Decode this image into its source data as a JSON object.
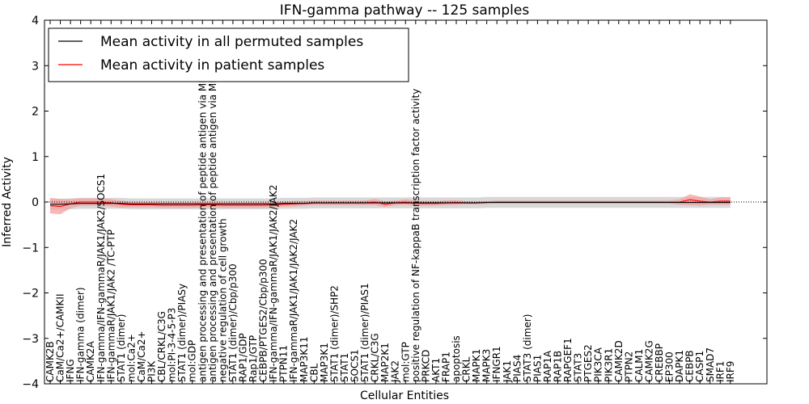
{
  "chart_data": {
    "type": "line",
    "title": "IFN-gamma pathway -- 125 samples",
    "xlabel": "Cellular Entities",
    "ylabel": "Inferred Activity",
    "ylim": [
      -4,
      4
    ],
    "yticks": [
      -4,
      -3,
      -2,
      -1,
      0,
      1,
      2,
      3,
      4
    ],
    "grid": false,
    "legend_position": "top-left",
    "categories": [
      "CAMK2B",
      "CaM/Ca2+/CAMKII",
      "IFNG",
      "IFN-gamma (dimer)",
      "CAMK2A",
      "IFN-gamma/IFN-gammaR/JAK1/JAK2/SOCS1",
      "IFN-gammaR/JAK1/JAK2 /TC-PTP",
      "STAT1 (dimer)",
      "mol:Ca2+",
      "CaM/Ca2+",
      "PI3K",
      "CBL/CRKL/C3G",
      "mol:PI-3-4-5-P3",
      "STAT1 (dimer)/PIASy",
      "mol:GDP",
      "antigen processing and presentation of peptide antigen via MHC class I",
      "antigen processing and presentation of peptide antigen via MHC class II",
      "negative regulation of cell growth",
      "STAT1 (dimer)/Cbp/p300",
      "RAP1/GDP",
      "Rap1/GTP",
      "CEBPB/PTGES2/Cbp/p300",
      "IFN-gamma/IFN-gammaR/JAK1/JAK2/JAK2",
      "PTPN11",
      "IFN-gammaR/JAK1/JAK1/JAK2/JAK2",
      "MAP3K11",
      "CBL",
      "MAP3K1",
      "STAT1 (dimer)/SHP2",
      "STAT1",
      "SOCS1",
      "STAT1 (dimer)/PIAS1",
      "CRKL/C3G",
      "MAP2K1",
      "JAK2",
      "mol:GTP",
      "positive regulation of NF-kappaB transcription factor activity",
      "PRKCD",
      "AKT1",
      "FRAP1",
      "apoptosis",
      "CRKL",
      "MAPK1",
      "MAPK3",
      "IFNGR1",
      "JAK1",
      "PIAS4",
      "STAT3 (dimer)",
      "PIAS1",
      "RAP1A",
      "RAP1B",
      "RAPGEF1",
      "STAT3",
      "PTGES2",
      "PIK3CA",
      "PIK3R1",
      "CAMK2D",
      "PTPN2",
      "CALM1",
      "CAMK2G",
      "CREBBP",
      "EP300",
      "DAPK1",
      "CEBPB",
      "CASP1",
      "SMAD7",
      "IRF1",
      "IRF9"
    ],
    "series": [
      {
        "name": "Mean activity in all permuted samples",
        "color": "#000000",
        "band_color": "#c8c8c8",
        "values": [
          -0.05,
          -0.05,
          -0.04,
          -0.03,
          -0.03,
          -0.03,
          -0.03,
          -0.03,
          -0.04,
          -0.04,
          -0.04,
          -0.04,
          -0.04,
          -0.04,
          -0.04,
          -0.04,
          -0.04,
          -0.04,
          -0.04,
          -0.04,
          -0.04,
          -0.04,
          -0.04,
          -0.03,
          -0.03,
          -0.03,
          -0.02,
          -0.02,
          -0.02,
          -0.02,
          -0.02,
          -0.02,
          -0.02,
          -0.02,
          -0.02,
          -0.02,
          -0.02,
          -0.02,
          -0.02,
          -0.02,
          -0.02,
          -0.02,
          -0.02,
          -0.01,
          -0.01,
          -0.01,
          -0.01,
          -0.01,
          -0.01,
          -0.01,
          -0.01,
          -0.01,
          -0.01,
          -0.01,
          -0.01,
          -0.01,
          -0.01,
          -0.01,
          -0.01,
          -0.01,
          -0.01,
          -0.01,
          -0.01,
          -0.01,
          -0.01,
          -0.01,
          -0.01,
          -0.01
        ],
        "spread": [
          0.12,
          0.12,
          0.12,
          0.12,
          0.12,
          0.12,
          0.12,
          0.12,
          0.12,
          0.12,
          0.12,
          0.12,
          0.12,
          0.12,
          0.12,
          0.12,
          0.12,
          0.12,
          0.12,
          0.12,
          0.12,
          0.12,
          0.12,
          0.12,
          0.12,
          0.12,
          0.12,
          0.12,
          0.12,
          0.12,
          0.12,
          0.12,
          0.12,
          0.12,
          0.12,
          0.12,
          0.12,
          0.12,
          0.12,
          0.12,
          0.12,
          0.12,
          0.12,
          0.12,
          0.12,
          0.12,
          0.12,
          0.12,
          0.12,
          0.12,
          0.12,
          0.12,
          0.12,
          0.12,
          0.12,
          0.12,
          0.12,
          0.12,
          0.12,
          0.12,
          0.12,
          0.12,
          0.12,
          0.12,
          0.12,
          0.12,
          0.12,
          0.12
        ]
      },
      {
        "name": "Mean activity in patient samples",
        "color": "#ff0000",
        "band_color": "#f4a0a0",
        "values": [
          -0.08,
          -0.1,
          -0.04,
          0.0,
          0.0,
          0.0,
          -0.02,
          -0.05,
          -0.06,
          -0.06,
          -0.06,
          -0.07,
          -0.07,
          -0.07,
          -0.07,
          -0.06,
          -0.06,
          -0.07,
          -0.07,
          -0.07,
          -0.07,
          -0.07,
          -0.06,
          -0.05,
          -0.04,
          -0.03,
          -0.02,
          -0.02,
          -0.02,
          -0.02,
          -0.02,
          -0.02,
          0.0,
          -0.05,
          -0.02,
          0.0,
          -0.03,
          -0.03,
          -0.03,
          -0.02,
          -0.01,
          -0.02,
          -0.02,
          -0.01,
          0.0,
          0.0,
          0.0,
          0.0,
          0.0,
          0.0,
          0.0,
          0.0,
          0.0,
          0.0,
          0.0,
          0.0,
          0.0,
          0.0,
          0.0,
          0.0,
          0.0,
          0.0,
          0.0,
          0.05,
          0.02,
          0.0,
          0.02,
          0.02
        ],
        "spread": [
          0.17,
          0.17,
          0.1,
          0.08,
          0.08,
          0.08,
          0.08,
          0.08,
          0.06,
          0.06,
          0.06,
          0.06,
          0.06,
          0.06,
          0.06,
          0.06,
          0.06,
          0.06,
          0.06,
          0.06,
          0.06,
          0.06,
          0.06,
          0.05,
          0.06,
          0.05,
          0.05,
          0.05,
          0.05,
          0.05,
          0.05,
          0.05,
          0.07,
          0.06,
          0.05,
          0.06,
          0.06,
          0.05,
          0.05,
          0.05,
          0.05,
          0.03,
          0.03,
          0.03,
          0.03,
          0.03,
          0.03,
          0.03,
          0.03,
          0.03,
          0.03,
          0.03,
          0.03,
          0.03,
          0.03,
          0.03,
          0.03,
          0.03,
          0.03,
          0.03,
          0.03,
          0.03,
          0.06,
          0.12,
          0.1,
          0.06,
          0.08,
          0.08
        ]
      }
    ]
  }
}
